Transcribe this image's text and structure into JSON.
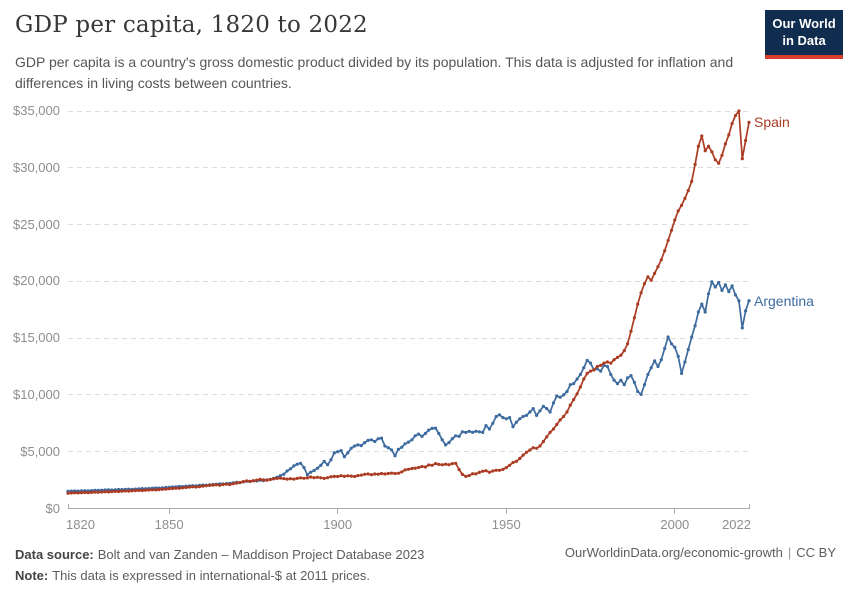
{
  "header": {
    "title": "GDP per capita, 1820 to 2022",
    "subtitle": "GDP per capita is a country's gross domestic product divided by its population. This data is adjusted for inflation and differences in living costs between countries.",
    "logo": {
      "line1": "Our World",
      "line2": "in Data",
      "bg_color": "#102c4e",
      "stripe_color": "#d73c2c"
    }
  },
  "footer": {
    "data_source_label": "Data source:",
    "data_source": "Bolt and van Zanden – Maddison Project Database 2023",
    "note_label": "Note:",
    "note": "This data is expressed in international-$ at 2011 prices.",
    "link": "OurWorldinData.org/economic-growth",
    "separator": "|",
    "license": "CC BY"
  },
  "chart_data": {
    "type": "line",
    "title": "GDP per capita, 1820 to 2022",
    "unit": "international-$ at 2011 prices",
    "x_start": 1820,
    "x_end": 2022,
    "x_ticks": [
      1820,
      1850,
      1900,
      1950,
      2000,
      2022
    ],
    "y_ticks": [
      0,
      5000,
      10000,
      15000,
      20000,
      25000,
      30000,
      35000
    ],
    "y_tick_prefix": "$",
    "ylim": [
      0,
      35000
    ],
    "grid": "horizontal-dashed",
    "markers": true,
    "legend_position": "end-of-line-labels",
    "colors": {
      "grid": "#dcdcdc",
      "axis": "#ababab",
      "tick_text": "#8e8e8e"
    },
    "series": [
      {
        "name": "Argentina",
        "color": "#3d6a9f",
        "values": [
          1520,
          1530,
          1545,
          1535,
          1555,
          1570,
          1560,
          1580,
          1600,
          1590,
          1610,
          1625,
          1640,
          1630,
          1650,
          1670,
          1660,
          1680,
          1700,
          1690,
          1710,
          1730,
          1750,
          1740,
          1765,
          1785,
          1805,
          1795,
          1820,
          1845,
          1870,
          1890,
          1915,
          1940,
          1930,
          1960,
          1985,
          2010,
          2000,
          2030,
          2060,
          2050,
          2080,
          2110,
          2140,
          2170,
          2160,
          2190,
          2220,
          2260,
          2300,
          2280,
          2340,
          2400,
          2380,
          2440,
          2420,
          2480,
          2460,
          2520,
          2560,
          2650,
          2760,
          2890,
          3020,
          3300,
          3500,
          3750,
          3900,
          3980,
          3600,
          2980,
          3200,
          3350,
          3550,
          3800,
          4150,
          3850,
          4300,
          4900,
          5000,
          5100,
          4550,
          4900,
          5300,
          5500,
          5600,
          5550,
          5800,
          6000,
          6050,
          5900,
          6150,
          6200,
          5500,
          5350,
          5150,
          4650,
          5200,
          5400,
          5700,
          5850,
          6050,
          6400,
          6550,
          6350,
          6600,
          6900,
          7050,
          7080,
          6600,
          6050,
          5600,
          5800,
          6150,
          6400,
          6350,
          6750,
          6700,
          6800,
          6700,
          6800,
          6750,
          6700,
          7300,
          7000,
          7500,
          8100,
          8250,
          8000,
          7900,
          8000,
          7200,
          7600,
          7900,
          8100,
          8200,
          8500,
          8800,
          8200,
          8600,
          9000,
          8800,
          8500,
          9300,
          9900,
          9800,
          10000,
          10300,
          10900,
          11000,
          11400,
          11800,
          12400,
          13050,
          12800,
          12200,
          12300,
          12100,
          12600,
          12500,
          11800,
          11300,
          11000,
          11300,
          10900,
          11500,
          11700,
          11100,
          10300,
          10050,
          10900,
          11800,
          12400,
          13000,
          12500,
          13100,
          14100,
          15100,
          14500,
          14200,
          13400,
          11900,
          12900,
          14000,
          15100,
          16100,
          17300,
          18000,
          17300,
          18900,
          19950,
          19500,
          19900,
          19200,
          19700,
          19100,
          19600,
          18800,
          18300,
          15900,
          17400,
          18300
        ]
      },
      {
        "name": "Spain",
        "color": "#ab3c23",
        "values": [
          1350,
          1365,
          1380,
          1370,
          1390,
          1410,
          1400,
          1420,
          1440,
          1430,
          1450,
          1470,
          1460,
          1485,
          1505,
          1495,
          1520,
          1540,
          1530,
          1555,
          1575,
          1595,
          1585,
          1610,
          1630,
          1650,
          1640,
          1665,
          1690,
          1710,
          1740,
          1760,
          1790,
          1780,
          1820,
          1850,
          1880,
          1910,
          1890,
          1930,
          1970,
          2000,
          2030,
          2060,
          2090,
          2050,
          2110,
          2150,
          2100,
          2180,
          2240,
          2290,
          2370,
          2430,
          2390,
          2450,
          2500,
          2570,
          2520,
          2490,
          2550,
          2610,
          2650,
          2680,
          2630,
          2590,
          2620,
          2590,
          2650,
          2690,
          2660,
          2690,
          2770,
          2710,
          2750,
          2700,
          2650,
          2710,
          2800,
          2830,
          2820,
          2890,
          2830,
          2880,
          2850,
          2820,
          2900,
          2940,
          3010,
          3040,
          2980,
          3040,
          3020,
          3080,
          3040,
          3080,
          3120,
          3080,
          3110,
          3220,
          3400,
          3450,
          3520,
          3550,
          3610,
          3700,
          3650,
          3830,
          3800,
          3950,
          3880,
          3850,
          3900,
          3860,
          3950,
          3980,
          3430,
          3000,
          2830,
          2900,
          3060,
          3050,
          3180,
          3280,
          3330,
          3190,
          3300,
          3370,
          3360,
          3440,
          3600,
          3800,
          4050,
          4150,
          4400,
          4700,
          4950,
          5150,
          5350,
          5300,
          5500,
          5900,
          6300,
          6700,
          7000,
          7400,
          7800,
          8100,
          8500,
          9100,
          9600,
          10100,
          10700,
          11400,
          11900,
          12100,
          12200,
          12500,
          12600,
          12800,
          12900,
          12800,
          13100,
          13300,
          13500,
          13900,
          14500,
          15600,
          16800,
          18000,
          19000,
          19800,
          20400,
          20100,
          20700,
          21300,
          21900,
          22700,
          23600,
          24500,
          25400,
          26200,
          26700,
          27300,
          28000,
          28800,
          30300,
          31900,
          32800,
          31500,
          31900,
          31400,
          30700,
          30400,
          31100,
          32100,
          32900,
          33900,
          34600,
          35000,
          30800,
          32400,
          34000
        ]
      }
    ]
  }
}
